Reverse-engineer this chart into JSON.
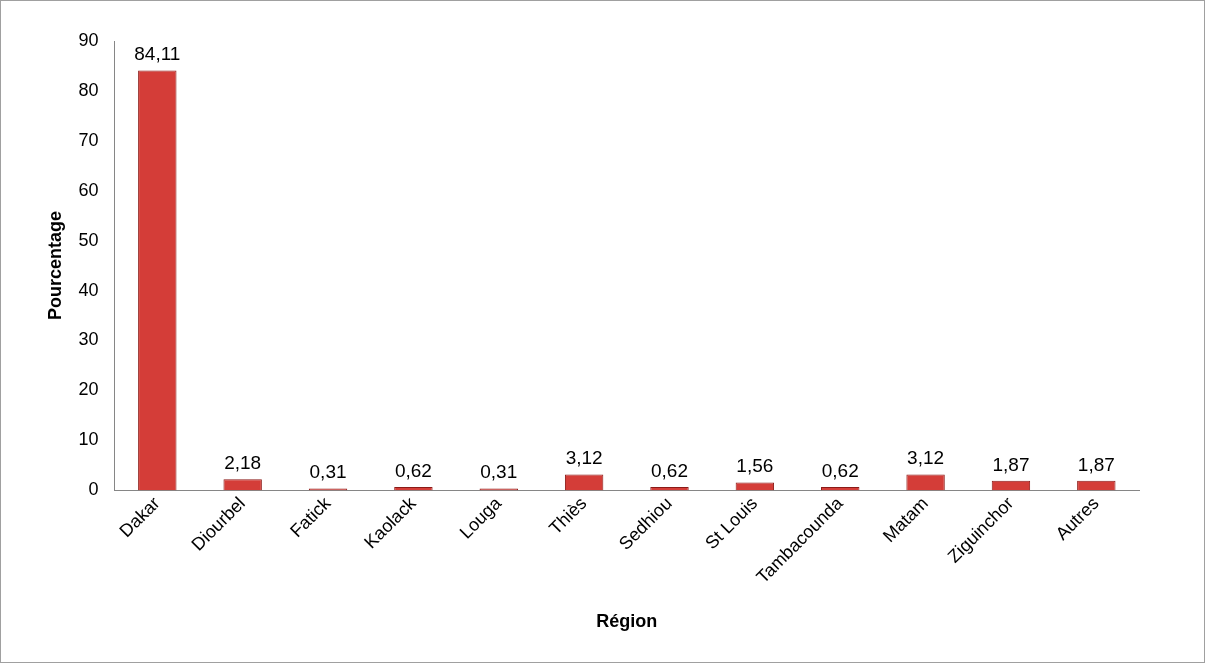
{
  "chart_data": {
    "type": "bar",
    "xlabel": "Région",
    "ylabel": "Pourcentage",
    "categories": [
      "Dakar",
      "Diourbel",
      "Fatick",
      "Kaolack",
      "Louga",
      "Thiès",
      "Sedhiou",
      "St Louis",
      "Tambacounda",
      "Matam",
      "Ziguinchor",
      "Autres"
    ],
    "values": [
      84.11,
      2.18,
      0.31,
      0.62,
      0.31,
      3.12,
      0.62,
      1.56,
      0.62,
      3.12,
      1.87,
      1.87
    ],
    "value_labels": [
      "84,11",
      "2,18",
      "0,31",
      "0,62",
      "0,31",
      "3,12",
      "0,62",
      "1,56",
      "0,62",
      "3,12",
      "1,87",
      "1,87"
    ],
    "color": "#d43d38",
    "ylim": [
      0,
      90
    ],
    "yticks": [
      0,
      10,
      20,
      30,
      40,
      50,
      60,
      70,
      80,
      90
    ],
    "grid": false,
    "legend": false
  }
}
